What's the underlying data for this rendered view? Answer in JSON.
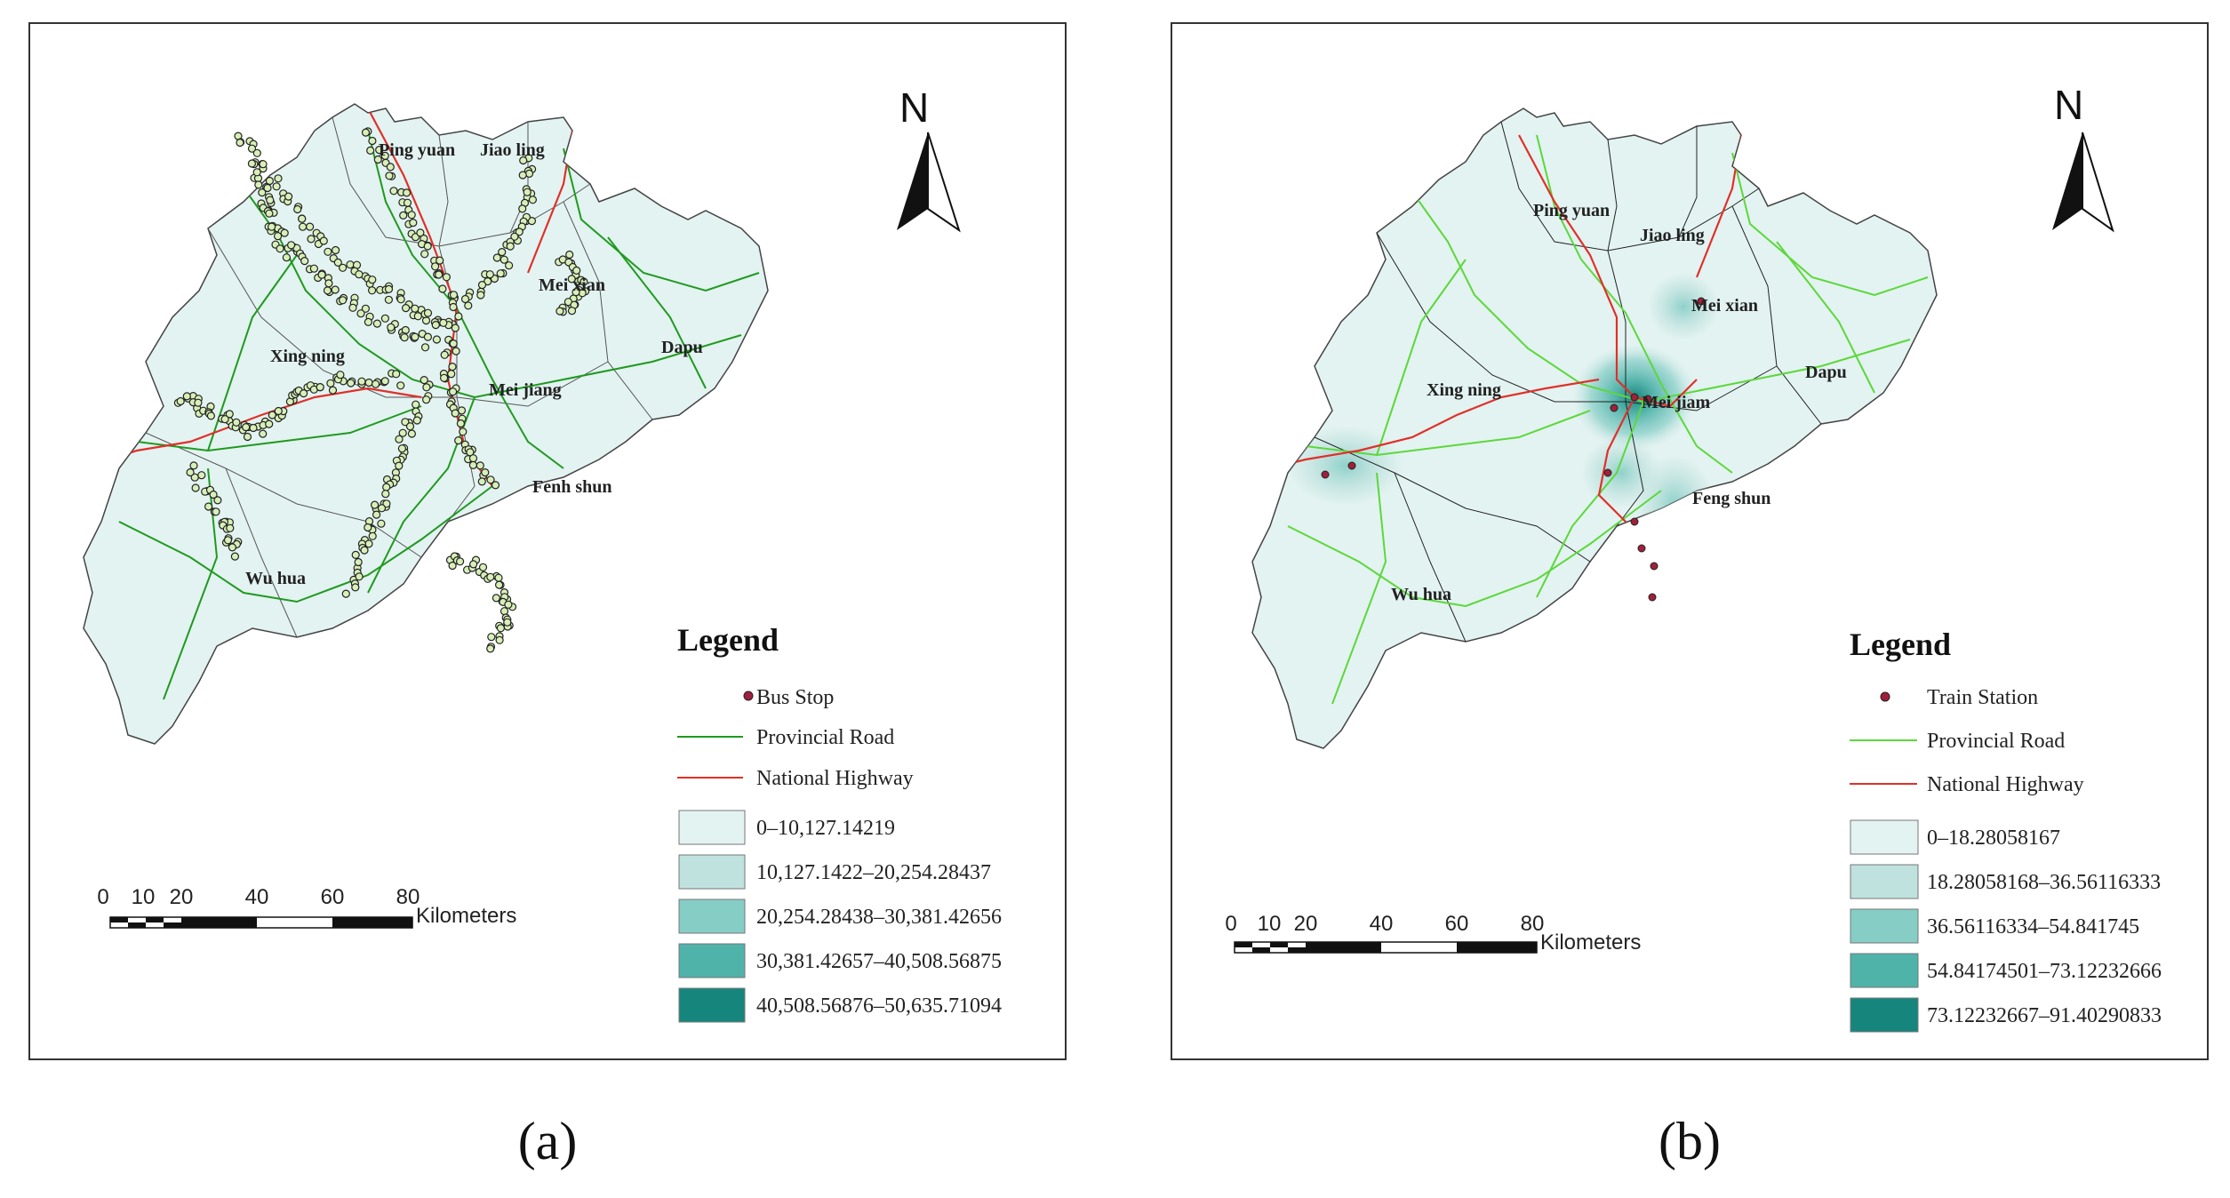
{
  "panels": {
    "a": {
      "caption": "(a)",
      "districts": [
        "Ping yuan",
        "Jiao ling",
        "Mei xian",
        "Xing ning",
        "Dapu",
        "Mei jiang",
        "Fenh shun",
        "Wu hua"
      ],
      "north_label": "N",
      "legend": {
        "title": "Legend",
        "point_label": "Bus Stop",
        "provincial_road": "Provincial Road",
        "national_highway": "National Highway",
        "classes": [
          "0–10,127.14219",
          "10,127.1422–20,254.28437",
          "20,254.28438–30,381.42656",
          "30,381.42657–40,508.56875",
          "40,508.56876–50,635.71094"
        ]
      },
      "scale": {
        "ticks": [
          "0",
          "10",
          "20",
          "40",
          "60",
          "80"
        ],
        "unit": "Kilometers"
      }
    },
    "b": {
      "caption": "(b)",
      "districts": [
        "Ping yuan",
        "Jiao ling",
        "Mei xian",
        "Xing ning",
        "Dapu",
        "Mei jiam",
        "Feng shun",
        "Wu hua"
      ],
      "north_label": "N",
      "legend": {
        "title": "Legend",
        "point_label": "Train Station",
        "provincial_road": "Provincial Road",
        "national_highway": "National Highway",
        "classes": [
          "0–18.28058167",
          "18.28058168–36.56116333",
          "36.56116334–54.841745",
          "54.84174501–73.12232666",
          "73.12232667–91.40290833"
        ]
      },
      "scale": {
        "ticks": [
          "0",
          "10",
          "20",
          "40",
          "60",
          "80"
        ],
        "unit": "Kilometers"
      }
    }
  },
  "colors": {
    "class_fills": [
      "#e3f3f1",
      "#bfe2de",
      "#86cdc6",
      "#4fb3aa",
      "#16867d"
    ],
    "region_fill": "#e3f3f1",
    "provincial_road_a": "#1f9a1f",
    "provincial_road_b": "#5cd83a",
    "national_highway": "#e0302a",
    "bus_stop_fill": "#d8efb8",
    "train_station_fill": "#a0203a"
  }
}
